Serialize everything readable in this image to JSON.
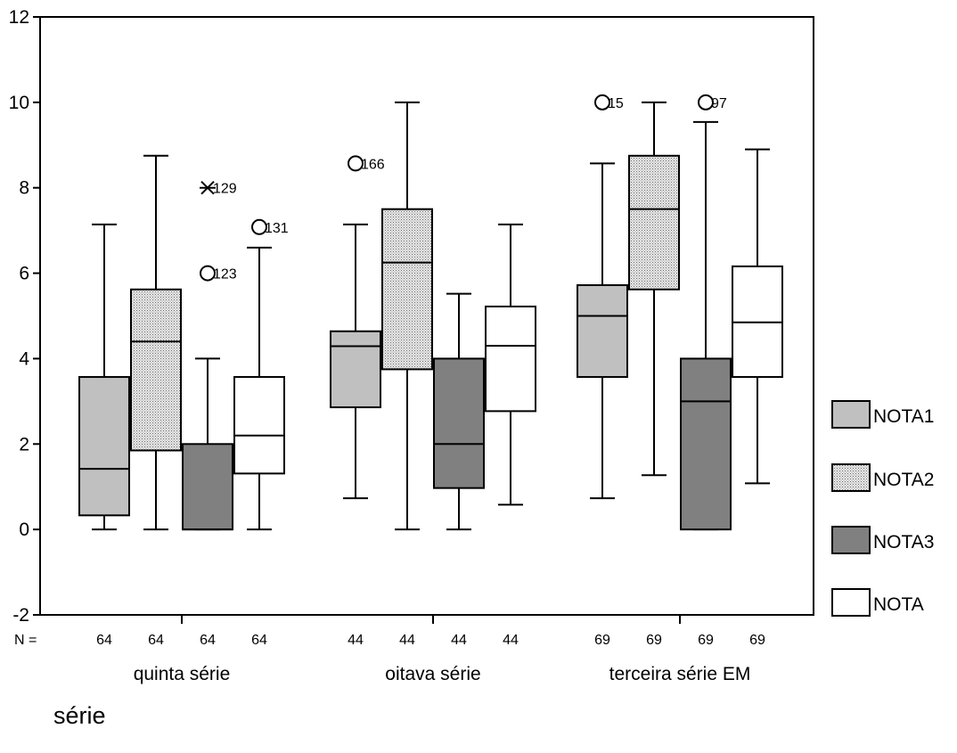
{
  "chart_data": {
    "type": "boxplot",
    "xlabel": "série",
    "ylim": [
      -2,
      12
    ],
    "yticks": [
      "-2",
      "0",
      "2",
      "4",
      "6",
      "8",
      "10",
      "12"
    ],
    "n_prefix": "N =",
    "legend_placement": "right",
    "groups": [
      {
        "label": "quinta série",
        "boxes": [
          {
            "series": "NOTA1",
            "n": "64",
            "min": 0,
            "q1": 0.33,
            "median": 1.42,
            "q3": 3.57,
            "max": 7.14,
            "outliers": []
          },
          {
            "series": "NOTA2",
            "n": "64",
            "min": 0,
            "q1": 1.85,
            "median": 4.4,
            "q3": 5.62,
            "max": 8.75,
            "outliers": []
          },
          {
            "series": "NOTA3",
            "n": "64",
            "min": 0,
            "q1": 0,
            "median": 0,
            "q3": 2,
            "max": 4,
            "outliers": [
              {
                "value": 8,
                "marker": "star",
                "label": "129"
              },
              {
                "value": 6,
                "marker": "circle",
                "label": "123"
              }
            ]
          },
          {
            "series": "NOTA",
            "n": "64",
            "min": 0,
            "q1": 1.31,
            "median": 2.2,
            "q3": 3.57,
            "max": 6.6,
            "outliers": [
              {
                "value": 7.08,
                "marker": "circle",
                "label": "131"
              }
            ]
          }
        ]
      },
      {
        "label": "oitava série",
        "boxes": [
          {
            "series": "NOTA1",
            "n": "44",
            "min": 0.73,
            "q1": 2.86,
            "median": 4.29,
            "q3": 4.64,
            "max": 7.14,
            "outliers": [
              {
                "value": 8.57,
                "marker": "circle",
                "label": "166"
              }
            ]
          },
          {
            "series": "NOTA2",
            "n": "44",
            "min": 0,
            "q1": 3.75,
            "median": 6.25,
            "q3": 7.5,
            "max": 10,
            "outliers": []
          },
          {
            "series": "NOTA3",
            "n": "44",
            "min": 0,
            "q1": 0.97,
            "median": 2,
            "q3": 4,
            "max": 5.52,
            "outliers": []
          },
          {
            "series": "NOTA",
            "n": "44",
            "min": 0.58,
            "q1": 2.77,
            "median": 4.3,
            "q3": 5.22,
            "max": 7.14,
            "outliers": []
          }
        ]
      },
      {
        "label": "terceira série EM",
        "boxes": [
          {
            "series": "NOTA1",
            "n": "69",
            "min": 0.73,
            "q1": 3.57,
            "median": 5,
            "q3": 5.72,
            "max": 8.57,
            "outliers": [
              {
                "value": 10,
                "marker": "circle",
                "label": "15"
              }
            ]
          },
          {
            "series": "NOTA2",
            "n": "69",
            "min": 1.27,
            "q1": 5.62,
            "median": 7.5,
            "q3": 8.75,
            "max": 10,
            "outliers": []
          },
          {
            "series": "NOTA3",
            "n": "69",
            "min": 0,
            "q1": 0,
            "median": 3,
            "q3": 4,
            "max": 9.54,
            "outliers": [
              {
                "value": 10,
                "marker": "circle",
                "label": "97"
              }
            ]
          },
          {
            "series": "NOTA",
            "n": "69",
            "min": 1.08,
            "q1": 3.57,
            "median": 4.85,
            "q3": 6.16,
            "max": 8.9,
            "outliers": []
          }
        ]
      }
    ],
    "legend": [
      {
        "name": "NOTA1",
        "fill": "#c0c0c0",
        "pattern": "light"
      },
      {
        "name": "NOTA2",
        "fill": "#d4d4d4",
        "pattern": "dots"
      },
      {
        "name": "NOTA3",
        "fill": "#808080",
        "pattern": "dark"
      },
      {
        "name": "NOTA",
        "fill": "#ffffff",
        "pattern": "none"
      }
    ]
  }
}
